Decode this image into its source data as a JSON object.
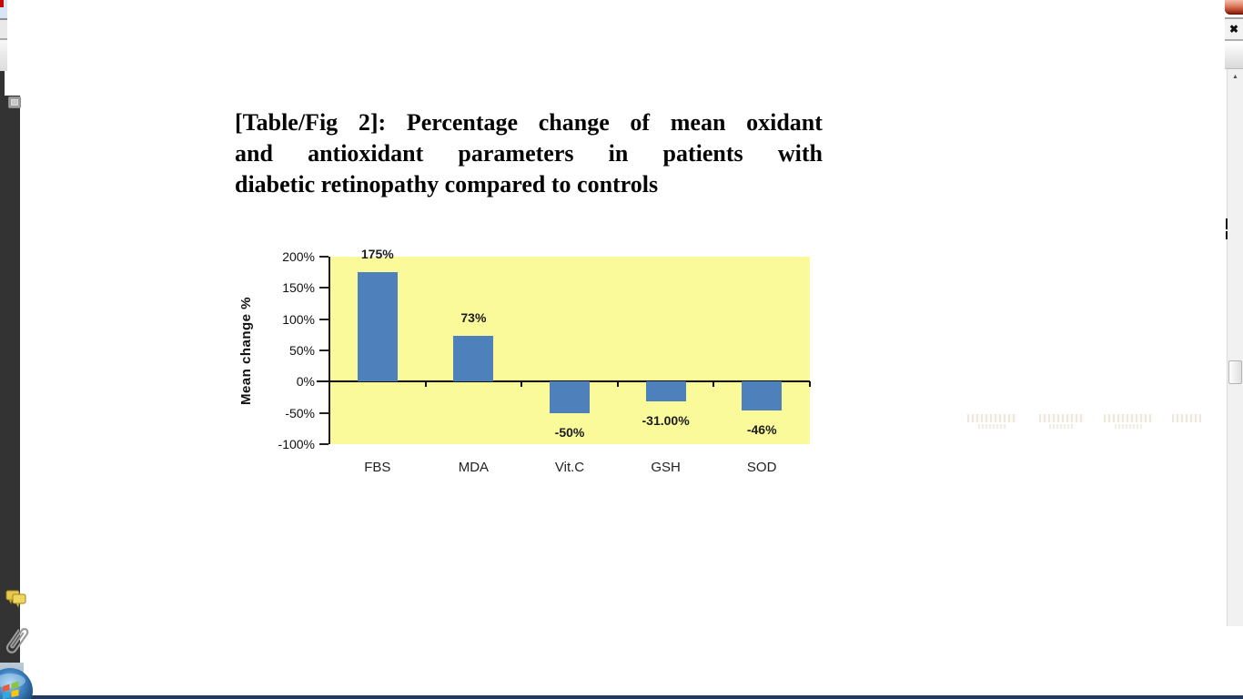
{
  "window": {
    "close_icon_glyph": "✖",
    "scroll_up_glyph": "▲"
  },
  "figure": {
    "caption_line1": "[Table/Fig 2]: Percentage change of mean oxidant",
    "caption_line2": "and antioxidant parameters in patients with",
    "caption_line3": "diabetic retinopathy compared to controls"
  },
  "chart_data": {
    "type": "bar",
    "title": "",
    "categories": [
      "FBS",
      "MDA",
      "Vit.C",
      "GSH",
      "SOD"
    ],
    "values": [
      175,
      73,
      -50,
      -31,
      -46
    ],
    "value_labels": [
      "175%",
      "73%",
      "-50%",
      "-31.00%",
      "-46%"
    ],
    "ylabel": "Mean change  %",
    "yticks": [
      200,
      150,
      100,
      50,
      0,
      -50,
      -100
    ],
    "ytick_labels": [
      "200%",
      "150%",
      "100%",
      "50%",
      "0%",
      "-50%",
      "-100%"
    ],
    "ylim": [
      -100,
      200
    ],
    "grid": false,
    "legend": null,
    "plot_bg_color": "#FAFA9B",
    "bar_color": "#4E80BC"
  },
  "colors": {
    "sidebar_dark": "#333333",
    "close_button_red": "#B03A21",
    "taskbar_line_navy": "#24375E",
    "plot_background_yellow": "#FAFA9B",
    "bar_blue": "#4E80BC"
  }
}
